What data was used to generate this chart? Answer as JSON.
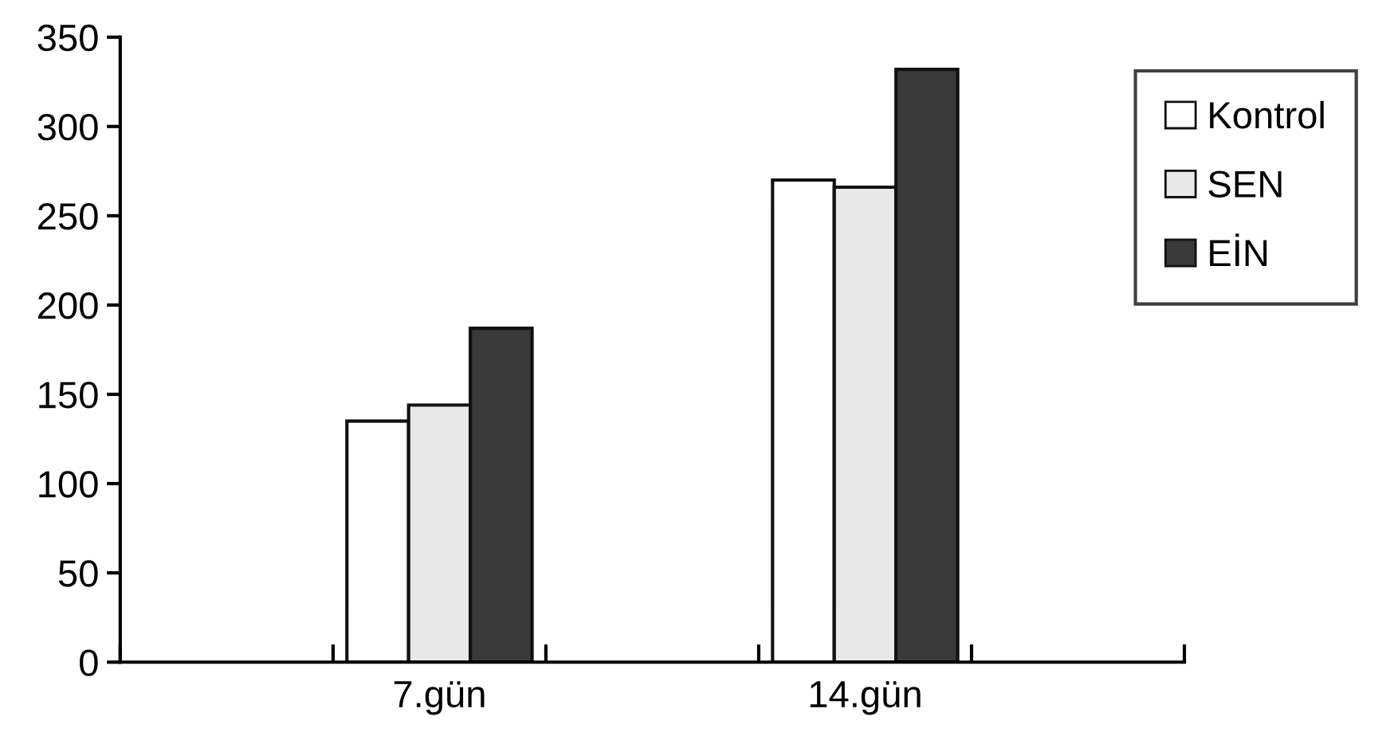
{
  "chart_data": {
    "type": "bar",
    "categories": [
      null,
      "7.gün",
      null,
      "14.gün",
      null
    ],
    "series": [
      {
        "name": "Kontrol",
        "color": "#ffffff",
        "values": [
          null,
          135,
          null,
          270,
          null
        ]
      },
      {
        "name": "SEN",
        "color": "#e8e8e8",
        "values": [
          null,
          144,
          null,
          266,
          null
        ]
      },
      {
        "name": "EİN",
        "color": "#3a3a3a",
        "values": [
          null,
          187,
          null,
          332,
          null
        ]
      }
    ],
    "ylim": [
      0,
      350
    ],
    "yticks": [
      0,
      50,
      100,
      150,
      200,
      250,
      300,
      350
    ],
    "grid": false,
    "legend": "top right"
  }
}
